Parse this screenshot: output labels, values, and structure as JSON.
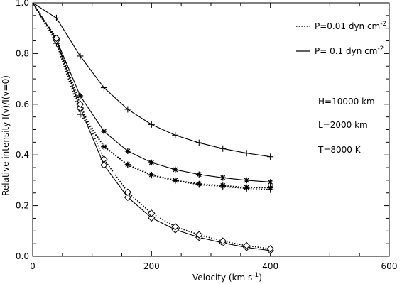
{
  "chart_data": {
    "type": "line",
    "xlabel": "Velocity (km s",
    "xlabel_sup": "-1",
    "xlabel_tail": ")",
    "ylabel": "Relative intensity I(v)/I(v=0)",
    "xlim": [
      0,
      600
    ],
    "ylim": [
      0.0,
      1.0
    ],
    "x_ticks": [
      0,
      200,
      400,
      600
    ],
    "y_ticks": [
      0.0,
      0.2,
      0.4,
      0.6,
      0.8,
      1.0
    ],
    "x_tick_labels": [
      "0",
      "200",
      "400",
      "600"
    ],
    "y_tick_labels": [
      "0.0",
      "0.2",
      "0.4",
      "0.6",
      "0.8",
      "1.0"
    ],
    "grid": false,
    "legend": {
      "placement": "top-right",
      "entries": [
        {
          "style": "dotted",
          "label": "P=0.01 dyn cm",
          "sup": "-2"
        },
        {
          "style": "solid",
          "label": "P= 0.1 dyn cm",
          "sup": "-2"
        }
      ]
    },
    "annotations": [
      "H=10000 km",
      "L=2000 km",
      "T=8000 K"
    ],
    "x": [
      0,
      40,
      80,
      120,
      160,
      200,
      240,
      280,
      320,
      360,
      400
    ],
    "series": [
      {
        "line": "solid",
        "marker": "plus",
        "values": [
          1.0,
          0.94,
          0.79,
          0.665,
          0.58,
          0.52,
          0.478,
          0.448,
          0.425,
          0.407,
          0.393
        ]
      },
      {
        "line": "dotted",
        "marker": "plus",
        "values": [
          1.0,
          0.84,
          0.56,
          0.435,
          0.36,
          0.32,
          0.298,
          0.283,
          0.275,
          0.268,
          0.263
        ]
      },
      {
        "line": "solid",
        "marker": "asterisk",
        "values": [
          1.0,
          0.855,
          0.633,
          0.493,
          0.415,
          0.37,
          0.342,
          0.323,
          0.31,
          0.3,
          0.293
        ]
      },
      {
        "line": "dotted",
        "marker": "asterisk",
        "values": [
          1.0,
          0.85,
          0.58,
          0.432,
          0.362,
          0.322,
          0.3,
          0.286,
          0.279,
          0.272,
          0.27
        ]
      },
      {
        "line": "solid",
        "marker": "diamond",
        "values": [
          1.0,
          0.853,
          0.585,
          0.36,
          0.233,
          0.152,
          0.105,
          0.075,
          0.053,
          0.035,
          0.023
        ]
      },
      {
        "line": "dotted",
        "marker": "diamond",
        "values": [
          1.0,
          0.86,
          0.6,
          0.383,
          0.253,
          0.17,
          0.117,
          0.085,
          0.06,
          0.042,
          0.03
        ]
      }
    ]
  }
}
